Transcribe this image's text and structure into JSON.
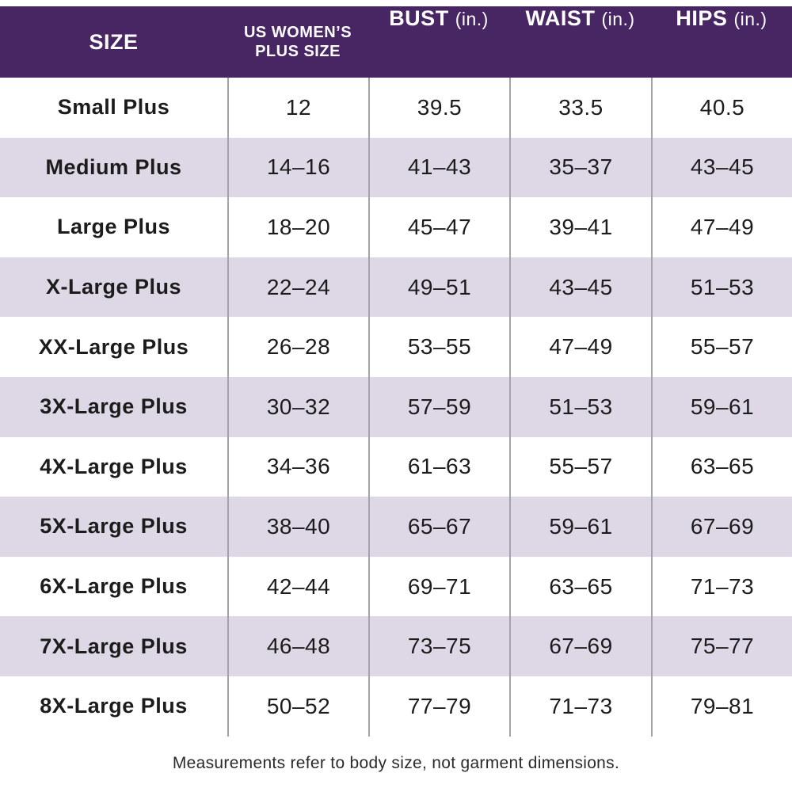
{
  "colors": {
    "header_bg": "#472663",
    "header_text": "#ffffff",
    "row_bg": "#ffffff",
    "row_alt_bg": "#ded7e6",
    "grid_line": "#a5a2a8",
    "text": "#1c1c1c",
    "footnote_text": "#2a2a2a"
  },
  "header": {
    "size": "SIZE",
    "plus_size_line1": "US WOMEN’S",
    "plus_size_line2": "PLUS SIZE",
    "bust": "BUST",
    "bust_unit": "(in.)",
    "waist": "WAIST",
    "waist_unit": "(in.)",
    "hips": "HIPS",
    "hips_unit": "(in.)"
  },
  "footnote": "Measurements refer to body size, not garment dimensions.",
  "chart_data": {
    "type": "table",
    "title": "US Women's Plus Size Chart",
    "columns": [
      "SIZE",
      "US WOMEN’S PLUS SIZE",
      "BUST (in.)",
      "WAIST (in.)",
      "HIPS (in.)"
    ],
    "rows": [
      [
        "Small Plus",
        "12",
        "39.5",
        "33.5",
        "40.5"
      ],
      [
        "Medium Plus",
        "14–16",
        "41–43",
        "35–37",
        "43–45"
      ],
      [
        "Large Plus",
        "18–20",
        "45–47",
        "39–41",
        "47–49"
      ],
      [
        "X-Large Plus",
        "22–24",
        "49–51",
        "43–45",
        "51–53"
      ],
      [
        "XX-Large Plus",
        "26–28",
        "53–55",
        "47–49",
        "55–57"
      ],
      [
        "3X-Large Plus",
        "30–32",
        "57–59",
        "51–53",
        "59–61"
      ],
      [
        "4X-Large Plus",
        "34–36",
        "61–63",
        "55–57",
        "63–65"
      ],
      [
        "5X-Large Plus",
        "38–40",
        "65–67",
        "59–61",
        "67–69"
      ],
      [
        "6X-Large Plus",
        "42–44",
        "69–71",
        "63–65",
        "71–73"
      ],
      [
        "7X-Large Plus",
        "46–48",
        "73–75",
        "67–69",
        "75–77"
      ],
      [
        "8X-Large Plus",
        "50–52",
        "77–79",
        "71–73",
        "79–81"
      ]
    ]
  }
}
